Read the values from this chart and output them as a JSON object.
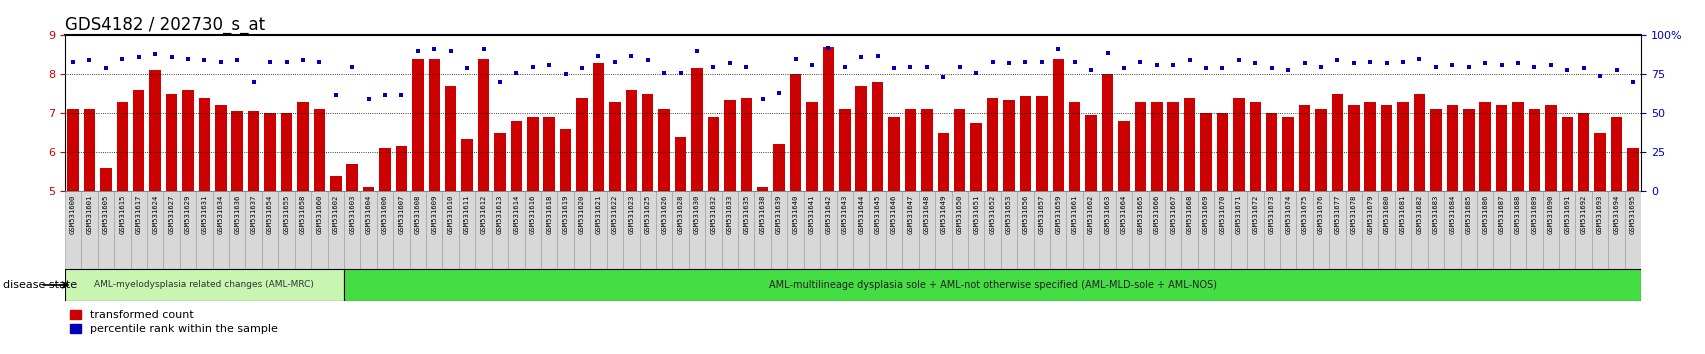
{
  "title": "GDS4182 / 202730_s_at",
  "samples": [
    "GSM531600",
    "GSM531601",
    "GSM531605",
    "GSM531615",
    "GSM531617",
    "GSM531624",
    "GSM531627",
    "GSM531629",
    "GSM531631",
    "GSM531634",
    "GSM531636",
    "GSM531637",
    "GSM531654",
    "GSM531655",
    "GSM531658",
    "GSM531660",
    "GSM531602",
    "GSM531603",
    "GSM531604",
    "GSM531606",
    "GSM531607",
    "GSM531608",
    "GSM531609",
    "GSM531610",
    "GSM531611",
    "GSM531612",
    "GSM531613",
    "GSM531614",
    "GSM531616",
    "GSM531618",
    "GSM531619",
    "GSM531620",
    "GSM531621",
    "GSM531622",
    "GSM531623",
    "GSM531625",
    "GSM531626",
    "GSM531628",
    "GSM531630",
    "GSM531632",
    "GSM531633",
    "GSM531635",
    "GSM531638",
    "GSM531639",
    "GSM531640",
    "GSM531641",
    "GSM531642",
    "GSM531643",
    "GSM531644",
    "GSM531645",
    "GSM531646",
    "GSM531647",
    "GSM531648",
    "GSM531649",
    "GSM531650",
    "GSM531651",
    "GSM531652",
    "GSM531653",
    "GSM531656",
    "GSM531657",
    "GSM531659",
    "GSM531661",
    "GSM531662",
    "GSM531663",
    "GSM531664",
    "GSM531665",
    "GSM531666",
    "GSM531667",
    "GSM531668",
    "GSM531669",
    "GSM531670",
    "GSM531671",
    "GSM531672",
    "GSM531673",
    "GSM531674",
    "GSM531675",
    "GSM531676",
    "GSM531677",
    "GSM531678",
    "GSM531679",
    "GSM531680",
    "GSM531681",
    "GSM531682",
    "GSM531683",
    "GSM531684",
    "GSM531685",
    "GSM531686",
    "GSM531687",
    "GSM531688",
    "GSM531689",
    "GSM531690",
    "GSM531691",
    "GSM531692",
    "GSM531693",
    "GSM531694",
    "GSM531695"
  ],
  "bar_values": [
    7.1,
    7.1,
    5.6,
    7.3,
    7.6,
    8.1,
    7.5,
    7.6,
    7.4,
    7.2,
    7.05,
    7.05,
    7.0,
    7.0,
    7.3,
    7.1,
    5.4,
    5.7,
    5.1,
    6.1,
    6.15,
    8.4,
    8.4,
    7.7,
    6.35,
    8.4,
    6.5,
    6.8,
    6.9,
    6.9,
    6.6,
    7.4,
    8.3,
    7.3,
    7.6,
    7.5,
    7.1,
    6.4,
    8.15,
    6.9,
    7.35,
    7.4,
    5.1,
    6.2,
    8.0,
    7.3,
    8.7,
    7.1,
    7.7,
    7.8,
    6.9,
    7.1,
    7.1,
    6.5,
    7.1,
    6.75,
    7.4,
    7.35,
    7.45,
    7.45,
    8.4,
    7.3,
    6.95,
    8.0,
    6.8,
    7.3,
    7.3,
    7.3,
    7.4,
    7.0,
    7.0,
    7.4,
    7.3,
    7.0,
    6.9,
    7.2,
    7.1,
    7.5,
    7.2,
    7.3,
    7.2,
    7.3,
    7.5,
    7.1,
    7.2,
    7.1,
    7.3,
    7.2,
    7.3,
    7.1,
    7.2,
    6.9,
    7.0,
    6.5,
    6.9,
    6.1
  ],
  "dot_values": [
    83,
    84,
    79,
    85,
    86,
    88,
    86,
    85,
    84,
    83,
    84,
    70,
    83,
    83,
    84,
    83,
    62,
    80,
    59,
    62,
    62,
    90,
    91,
    90,
    79,
    91,
    70,
    76,
    80,
    81,
    75,
    79,
    87,
    83,
    87,
    84,
    76,
    76,
    90,
    80,
    82,
    80,
    59,
    63,
    85,
    81,
    92,
    80,
    86,
    87,
    79,
    80,
    80,
    73,
    80,
    76,
    83,
    82,
    83,
    83,
    91,
    83,
    78,
    89,
    79,
    83,
    81,
    81,
    84,
    79,
    79,
    84,
    82,
    79,
    78,
    82,
    80,
    84,
    82,
    83,
    82,
    83,
    85,
    80,
    81,
    80,
    82,
    81,
    82,
    80,
    81,
    78,
    79,
    74,
    78,
    70
  ],
  "group1_count": 17,
  "group1_label": "AML-myelodysplasia related changes (AML-MRC)",
  "group2_label": "AML-multilineage dysplasia sole + AML-not otherwise specified (AML-MLD-sole + AML-NOS)",
  "group1_color": "#c8f5b0",
  "group2_color": "#44dd44",
  "ylim_left": [
    5,
    9
  ],
  "ylim_right": [
    0,
    100
  ],
  "yticks_left": [
    5,
    6,
    7,
    8,
    9
  ],
  "yticks_right": [
    0,
    25,
    50,
    75,
    100
  ],
  "bar_color": "#cc0000",
  "dot_color": "#0000bb",
  "title_fontsize": 12,
  "tick_fontsize": 5.2,
  "background_color": "#ffffff",
  "disease_state_label": "disease state",
  "legend_bar": "transformed count",
  "legend_dot": "percentile rank within the sample"
}
